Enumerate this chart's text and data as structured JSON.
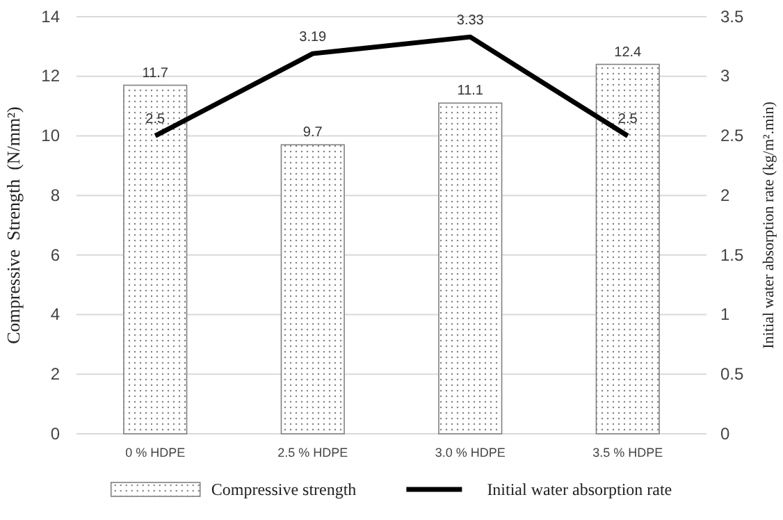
{
  "chart_data": {
    "type": "bar",
    "categories": [
      "0 % HDPE",
      "2.5 % HDPE",
      "3.0 % HDPE",
      "3.5 % HDPE"
    ],
    "series": [
      {
        "name": "Compressive strength",
        "color": "#808080",
        "values": [
          11.7,
          9.7,
          11.1,
          12.4
        ]
      },
      {
        "name": "Initial water absorption rate",
        "type": "line",
        "axis": "y2",
        "color": "#000000",
        "values": [
          2.5,
          3.19,
          3.33,
          2.5
        ]
      }
    ],
    "ylabel": "Compressive  Strength  (N/mm²)",
    "y2label": "Initial water absorption rate (kg/m².min)",
    "ylim": [
      0,
      14
    ],
    "yticks": [
      0,
      2,
      4,
      6,
      8,
      10,
      12,
      14
    ],
    "y2lim": [
      0,
      3.5
    ],
    "y2ticks": [
      0,
      0.5,
      1,
      1.5,
      2,
      2.5,
      3,
      3.5
    ],
    "grid": "y",
    "legend": "bottom",
    "data_labels": true,
    "marker": "none",
    "line_style": "solid"
  }
}
